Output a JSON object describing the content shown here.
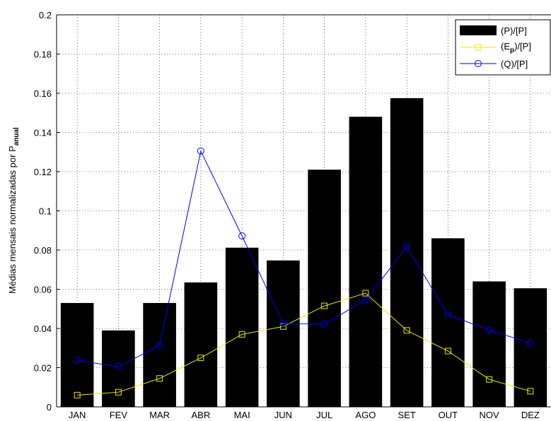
{
  "chart_data": {
    "type": "bar",
    "categories": [
      "JAN",
      "FEV",
      "MAR",
      "ABR",
      "MAI",
      "JUN",
      "JUL",
      "AGO",
      "SET",
      "OUT",
      "NOV",
      "DEZ"
    ],
    "ylabel_main": "Médias mensais normalizadas por P",
    "ylabel_sub": "anual",
    "xlabel": "",
    "title": "",
    "ylim": [
      0,
      0.2
    ],
    "yticks": [
      "0",
      "0.02",
      "0.04",
      "0.06",
      "0.08",
      "0.1",
      "0.12",
      "0.14",
      "0.16",
      "0.18",
      "0.2"
    ],
    "grid": true,
    "legend_position": "top-right",
    "series": [
      {
        "name": "(P)/[P]",
        "kind": "bar",
        "color": "#000000",
        "values": [
          0.053,
          0.039,
          0.053,
          0.0635,
          0.0812,
          0.0747,
          0.121,
          0.148,
          0.1575,
          0.086,
          0.064,
          0.0605
        ]
      },
      {
        "name_main": "(E",
        "name_sub": "p",
        "name_tail": ")/[P]",
        "kind": "line",
        "marker": "square",
        "color": "#e8e800",
        "values": [
          0.006,
          0.0075,
          0.0145,
          0.025,
          0.037,
          0.041,
          0.0515,
          0.058,
          0.039,
          0.0285,
          0.014,
          0.008
        ]
      },
      {
        "name": "(Q)/[P]",
        "kind": "line",
        "marker": "circle",
        "color": "#0000ff",
        "values": [
          0.0237,
          0.0205,
          0.0313,
          0.1305,
          0.0872,
          0.0425,
          0.0422,
          0.0545,
          0.0817,
          0.047,
          0.0392,
          0.0325
        ]
      }
    ]
  }
}
